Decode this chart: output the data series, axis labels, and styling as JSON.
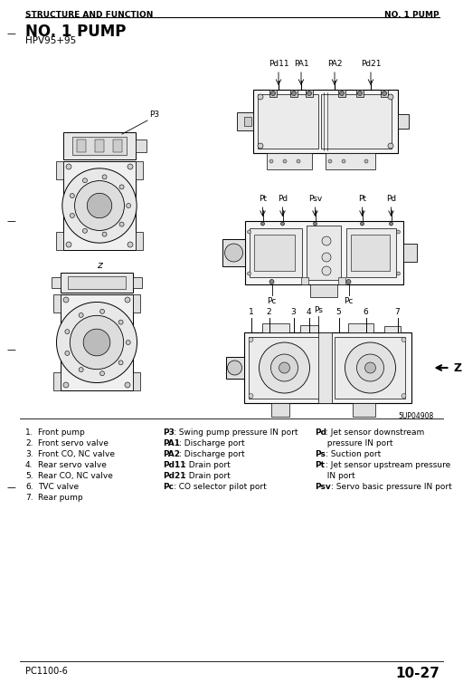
{
  "background_color": "#ffffff",
  "header_left": "STRUCTURE AND FUNCTION",
  "header_right": "NO. 1 PUMP",
  "title": "NO. 1 PUMP",
  "subtitle": "HPV95+95",
  "footer_left": "PC1100-6",
  "footer_right": "10-27",
  "figure_note": "5UP04908",
  "text_color": "#000000",
  "line_color": "#000000",
  "legend_col1": [
    [
      "1.",
      "Front pump"
    ],
    [
      "2.",
      "Front servo valve"
    ],
    [
      "3.",
      "Front CO, NC valve"
    ],
    [
      "4.",
      "Rear servo valve"
    ],
    [
      "5.",
      "Rear CO, NC valve"
    ],
    [
      "6.",
      "TVC valve"
    ],
    [
      "7.",
      "Rear pump"
    ]
  ],
  "legend_col2": [
    [
      "P3",
      ": Swing pump pressure IN port"
    ],
    [
      "PA1",
      ": Discharge port"
    ],
    [
      "PA2",
      ": Discharge port"
    ],
    [
      "Pd11",
      ": Drain port"
    ],
    [
      "Pd21",
      ": Drain port"
    ],
    [
      "Pc",
      ": CO selector pilot port"
    ]
  ],
  "legend_col3": [
    [
      "Pd",
      ": Jet sensor downstream"
    ],
    [
      "",
      "  pressure IN port"
    ],
    [
      "Ps",
      ": Suction port"
    ],
    [
      "Pt",
      ": Jet sensor upstream pressure"
    ],
    [
      "",
      "  IN port"
    ],
    [
      "Psv",
      ": Servo basic pressure IN port"
    ]
  ]
}
